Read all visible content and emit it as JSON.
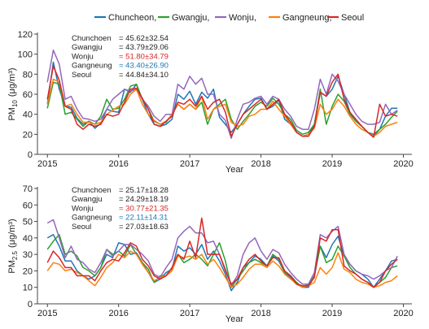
{
  "legend": [
    {
      "name": "Chuncheon,",
      "color": "#1f77b4"
    },
    {
      "name": "Gwangju,",
      "color": "#2ca02c"
    },
    {
      "name": "Wonju,",
      "color": "#9467bd"
    },
    {
      "name": "Gangneung,",
      "color": "#ff7f0e"
    },
    {
      "name": "Seoul",
      "color": "#d62728"
    }
  ],
  "chart_data": [
    {
      "type": "line",
      "xlabel": "Year",
      "ylabel_main": "PM",
      "ylabel_sub": "10",
      "ylabel_unit": "(μg/m³)",
      "xlim": [
        2015,
        2020
      ],
      "ylim": [
        0,
        120
      ],
      "yticks": [
        0,
        20,
        40,
        60,
        80,
        100,
        120
      ],
      "xticks": [
        "2015",
        "2016",
        "2017",
        "2018",
        "2019",
        "2020"
      ],
      "stats": [
        {
          "station": "Chunchoen",
          "value": "= 45.62±32.54",
          "color": "#222222"
        },
        {
          "station": "Gwangju",
          "value": "= 43.79±29.06",
          "color": "#222222"
        },
        {
          "station": "Wonju",
          "value": "= 51.80±34.79",
          "color": "#d62728"
        },
        {
          "station": "Gangneung",
          "value": "= 43.40±26.90",
          "color": "#1f77b4"
        },
        {
          "station": "Seoul",
          "value": "= 44.84±34.10",
          "color": "#222222"
        }
      ],
      "x": [
        2015.0,
        2015.083,
        2015.167,
        2015.25,
        2015.333,
        2015.417,
        2015.5,
        2015.583,
        2015.667,
        2015.75,
        2015.833,
        2015.917,
        2016.0,
        2016.083,
        2016.167,
        2016.25,
        2016.333,
        2016.417,
        2016.5,
        2016.583,
        2016.667,
        2016.75,
        2016.833,
        2016.917,
        2017.0,
        2017.083,
        2017.167,
        2017.25,
        2017.333,
        2017.417,
        2017.5,
        2017.583,
        2017.667,
        2017.75,
        2017.833,
        2017.917,
        2018.0,
        2018.083,
        2018.167,
        2018.25,
        2018.333,
        2018.417,
        2018.5,
        2018.583,
        2018.667,
        2018.75,
        2018.833,
        2018.917,
        2019.0,
        2019.083,
        2019.167,
        2019.25,
        2019.333,
        2019.417,
        2019.5,
        2019.583,
        2019.667,
        2019.75,
        2019.833,
        2019.917
      ],
      "series": [
        {
          "name": "Chuncheon",
          "color": "#1f77b4",
          "values": [
            50,
            92,
            65,
            48,
            47,
            36,
            30,
            33,
            26,
            31,
            45,
            43,
            42,
            65,
            62,
            70,
            55,
            40,
            30,
            28,
            30,
            35,
            60,
            55,
            63,
            50,
            62,
            56,
            65,
            37,
            30,
            22,
            30,
            40,
            48,
            55,
            56,
            45,
            48,
            54,
            35,
            30,
            22,
            18,
            20,
            30,
            62,
            58,
            65,
            78,
            60,
            42,
            33,
            28,
            22,
            20,
            25,
            38,
            46,
            46
          ]
        },
        {
          "name": "Gwangju",
          "color": "#2ca02c",
          "values": [
            46,
            72,
            70,
            40,
            42,
            35,
            28,
            33,
            30,
            38,
            55,
            45,
            46,
            55,
            68,
            70,
            55,
            45,
            33,
            30,
            32,
            40,
            50,
            45,
            50,
            45,
            52,
            30,
            45,
            50,
            55,
            35,
            25,
            33,
            40,
            48,
            52,
            48,
            56,
            50,
            40,
            35,
            24,
            20,
            22,
            30,
            65,
            30,
            48,
            60,
            53,
            40,
            33,
            28,
            22,
            18,
            25,
            30,
            37,
            43
          ]
        },
        {
          "name": "Wonju",
          "color": "#9467bd",
          "values": [
            72,
            104,
            90,
            55,
            58,
            45,
            36,
            35,
            33,
            35,
            45,
            55,
            60,
            65,
            63,
            65,
            55,
            48,
            38,
            33,
            40,
            40,
            70,
            65,
            78,
            70,
            76,
            60,
            60,
            40,
            34,
            16,
            35,
            50,
            52,
            56,
            58,
            50,
            58,
            55,
            45,
            38,
            28,
            25,
            25,
            45,
            75,
            60,
            80,
            73,
            60,
            50,
            40,
            33,
            30,
            30,
            32,
            50,
            40,
            44
          ]
        },
        {
          "name": "Gangneung",
          "color": "#ff7f0e",
          "values": [
            50,
            75,
            72,
            48,
            50,
            40,
            32,
            32,
            30,
            32,
            40,
            44,
            48,
            50,
            60,
            65,
            50,
            40,
            34,
            30,
            33,
            40,
            50,
            45,
            50,
            45,
            58,
            35,
            45,
            48,
            50,
            32,
            28,
            30,
            38,
            40,
            45,
            45,
            53,
            45,
            38,
            30,
            22,
            18,
            20,
            26,
            50,
            40,
            45,
            55,
            48,
            38,
            30,
            25,
            22,
            18,
            22,
            28,
            30,
            32
          ]
        },
        {
          "name": "Seoul",
          "color": "#d62728",
          "values": [
            55,
            88,
            74,
            48,
            45,
            30,
            25,
            30,
            28,
            30,
            40,
            38,
            40,
            52,
            65,
            66,
            56,
            45,
            30,
            28,
            33,
            38,
            52,
            50,
            55,
            48,
            58,
            45,
            52,
            55,
            42,
            18,
            30,
            40,
            45,
            50,
            55,
            45,
            50,
            55,
            40,
            32,
            22,
            18,
            18,
            28,
            62,
            58,
            72,
            80,
            55,
            42,
            35,
            28,
            22,
            17,
            50,
            38,
            40,
            38
          ]
        }
      ]
    },
    {
      "type": "line",
      "xlabel": "Year",
      "ylabel_main": "PM",
      "ylabel_sub": "2.5",
      "ylabel_unit": "(μg/m³)",
      "xlim": [
        2015,
        2020
      ],
      "ylim": [
        0,
        70
      ],
      "yticks": [
        0,
        10,
        20,
        30,
        40,
        50,
        60,
        70
      ],
      "xticks": [
        "2015",
        "2016",
        "2017",
        "2018",
        "2019",
        "2020"
      ],
      "stats": [
        {
          "station": "Chunchoen",
          "value": "= 25.17±18.28",
          "color": "#222222"
        },
        {
          "station": "Gwangju",
          "value": "= 24.29±18.19",
          "color": "#222222"
        },
        {
          "station": "Wonju",
          "value": "= 30.77±21.35",
          "color": "#d62728"
        },
        {
          "station": "Gangneung",
          "value": "= 22.11±14.31",
          "color": "#1f77b4"
        },
        {
          "station": "Seoul",
          "value": "= 27.03±18.63",
          "color": "#222222"
        }
      ],
      "x": [
        2015.0,
        2015.083,
        2015.167,
        2015.25,
        2015.333,
        2015.417,
        2015.5,
        2015.583,
        2015.667,
        2015.75,
        2015.833,
        2015.917,
        2016.0,
        2016.083,
        2016.167,
        2016.25,
        2016.333,
        2016.417,
        2016.5,
        2016.583,
        2016.667,
        2016.75,
        2016.833,
        2016.917,
        2017.0,
        2017.083,
        2017.167,
        2017.25,
        2017.333,
        2017.417,
        2017.5,
        2017.583,
        2017.667,
        2017.75,
        2017.833,
        2017.917,
        2018.0,
        2018.083,
        2018.167,
        2018.25,
        2018.333,
        2018.417,
        2018.5,
        2018.583,
        2018.667,
        2018.75,
        2018.833,
        2018.917,
        2019.0,
        2019.083,
        2019.167,
        2019.25,
        2019.333,
        2019.417,
        2019.5,
        2019.583,
        2019.667,
        2019.75,
        2019.833,
        2019.917
      ],
      "series": [
        {
          "name": "Chuncheon",
          "color": "#1f77b4",
          "values": [
            40,
            42,
            35,
            26,
            26,
            20,
            17,
            15,
            17,
            22,
            30,
            28,
            37,
            36,
            30,
            31,
            25,
            19,
            13,
            15,
            19,
            21,
            35,
            32,
            34,
            30,
            36,
            27,
            32,
            26,
            18,
            8,
            13,
            22,
            25,
            29,
            27,
            23,
            29,
            26,
            19,
            16,
            12,
            10,
            10,
            17,
            35,
            28,
            36,
            41,
            29,
            24,
            20,
            18,
            15,
            10,
            15,
            20,
            26,
            27
          ]
        },
        {
          "name": "Gwangju",
          "color": "#2ca02c",
          "values": [
            33,
            38,
            42,
            30,
            32,
            29,
            22,
            20,
            17,
            22,
            33,
            30,
            32,
            29,
            36,
            30,
            25,
            21,
            13,
            17,
            17,
            22,
            30,
            25,
            27,
            30,
            27,
            23,
            30,
            37,
            26,
            10,
            15,
            20,
            25,
            27,
            25,
            23,
            30,
            27,
            19,
            17,
            13,
            10,
            12,
            17,
            35,
            25,
            27,
            35,
            29,
            22,
            18,
            15,
            13,
            10,
            13,
            16,
            22,
            23
          ]
        },
        {
          "name": "Wonju",
          "color": "#9467bd",
          "values": [
            49,
            51,
            40,
            28,
            35,
            27,
            25,
            21,
            19,
            25,
            33,
            29,
            32,
            36,
            36,
            33,
            30,
            26,
            18,
            16,
            22,
            27,
            40,
            44,
            47,
            43,
            43,
            37,
            38,
            30,
            21,
            11,
            17,
            30,
            37,
            40,
            32,
            27,
            33,
            31,
            24,
            19,
            15,
            12,
            12,
            19,
            42,
            40,
            44,
            47,
            30,
            24,
            20,
            18,
            17,
            15,
            17,
            20,
            22,
            29
          ]
        },
        {
          "name": "Gangneung",
          "color": "#ff7f0e",
          "values": [
            20,
            25,
            24,
            20,
            21,
            19,
            17,
            14,
            11,
            16,
            22,
            25,
            30,
            28,
            32,
            30,
            24,
            19,
            14,
            16,
            17,
            20,
            29,
            28,
            29,
            27,
            30,
            24,
            27,
            22,
            16,
            10,
            12,
            16,
            21,
            24,
            24,
            22,
            26,
            23,
            18,
            15,
            12,
            10,
            11,
            13,
            22,
            18,
            22,
            31,
            21,
            19,
            15,
            13,
            12,
            10,
            11,
            13,
            14,
            17
          ]
        },
        {
          "name": "Seoul",
          "color": "#d62728",
          "values": [
            25,
            32,
            28,
            22,
            22,
            17,
            17,
            17,
            14,
            20,
            25,
            27,
            26,
            31,
            37,
            35,
            27,
            23,
            17,
            15,
            17,
            22,
            30,
            27,
            38,
            28,
            52,
            30,
            30,
            30,
            20,
            12,
            15,
            22,
            27,
            30,
            26,
            23,
            28,
            28,
            20,
            17,
            12,
            11,
            11,
            16,
            40,
            38,
            45,
            45,
            23,
            20,
            18,
            15,
            13,
            10,
            13,
            20,
            24,
            27
          ]
        }
      ]
    }
  ]
}
